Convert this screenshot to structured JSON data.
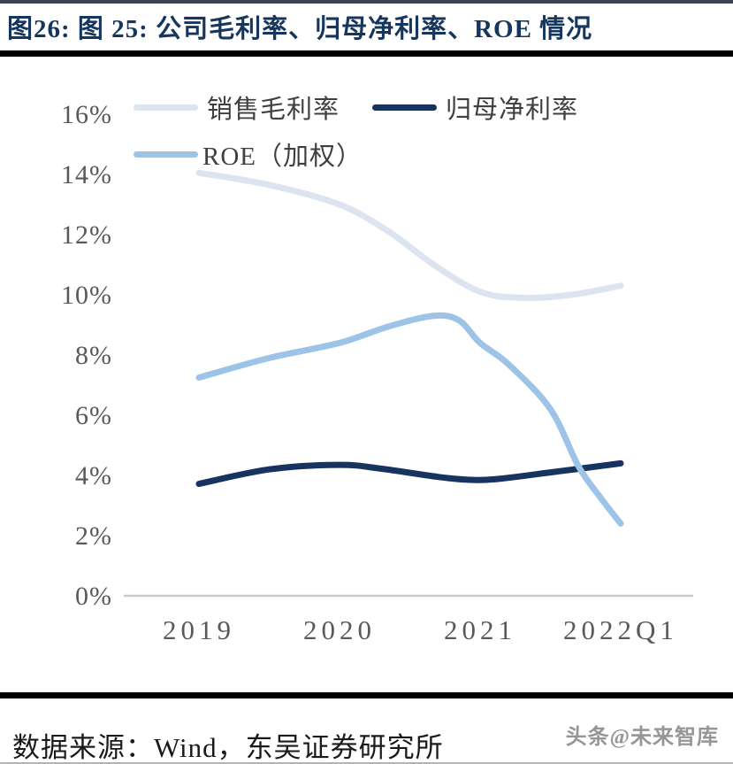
{
  "page": {
    "title": "图26:  图 25:  公司毛利率、归母净利率、ROE 情况",
    "footer": {
      "source": "数据来源：Wind，东吴证券研究所",
      "watermark": "头条@未来智库"
    }
  },
  "colors": {
    "title_text": "#17365d",
    "axis_text": "#595959",
    "legend_text": "#3f3f3f",
    "axis_line": "#c9c9c9",
    "rule_top": "#3d4352",
    "rule_dark": "#000000",
    "rule_bottom": "#b3b3b3",
    "footer_text": "#1a1a1a",
    "watermark_text": "#8b8b8b",
    "series_gross_margin": "#dce4f0",
    "series_net_margin": "#17335f",
    "series_roe": "#9dc3e6"
  },
  "chart_data": {
    "type": "line",
    "title": "公司毛利率、归母净利率、ROE 情况",
    "categories": [
      "2019",
      "2020",
      "2021",
      "2022Q1"
    ],
    "series": [
      {
        "name": "销售毛利率",
        "color_key": "series_gross_margin",
        "values": [
          14.0,
          13.0,
          10.1,
          10.3
        ],
        "smooth_samples": [
          [
            0,
            14.05
          ],
          [
            0.5,
            13.65
          ],
          [
            1,
            13.0
          ],
          [
            1.35,
            12.1
          ],
          [
            1.67,
            11.0
          ],
          [
            2,
            10.1
          ],
          [
            2.3,
            9.9
          ],
          [
            2.65,
            10.0
          ],
          [
            3,
            10.3
          ]
        ]
      },
      {
        "name": "归母净利率",
        "color_key": "series_net_margin",
        "values": [
          3.7,
          4.3,
          3.9,
          4.4
        ],
        "smooth_samples": [
          [
            0,
            3.72
          ],
          [
            0.5,
            4.2
          ],
          [
            1,
            4.35
          ],
          [
            1.3,
            4.22
          ],
          [
            1.7,
            3.95
          ],
          [
            1.9,
            3.86
          ],
          [
            2.1,
            3.87
          ],
          [
            2.5,
            4.1
          ],
          [
            3,
            4.4
          ]
        ]
      },
      {
        "name": "ROE（加权）",
        "color_key": "series_roe",
        "values": [
          7.3,
          8.4,
          8.4,
          2.4
        ],
        "smooth_samples": [
          [
            0,
            7.25
          ],
          [
            0.5,
            7.9
          ],
          [
            1,
            8.4
          ],
          [
            1.35,
            8.95
          ],
          [
            1.67,
            9.3
          ],
          [
            1.85,
            9.15
          ],
          [
            2,
            8.4
          ],
          [
            2.2,
            7.7
          ],
          [
            2.5,
            6.2
          ],
          [
            2.7,
            4.3
          ],
          [
            2.85,
            3.3
          ],
          [
            3,
            2.4
          ]
        ]
      }
    ],
    "ylim": [
      0,
      16
    ],
    "ytick_labels": [
      "0%",
      "2%",
      "4%",
      "6%",
      "8%",
      "10%",
      "12%",
      "14%",
      "16%"
    ],
    "grid": false,
    "legend_position": "top-left"
  }
}
